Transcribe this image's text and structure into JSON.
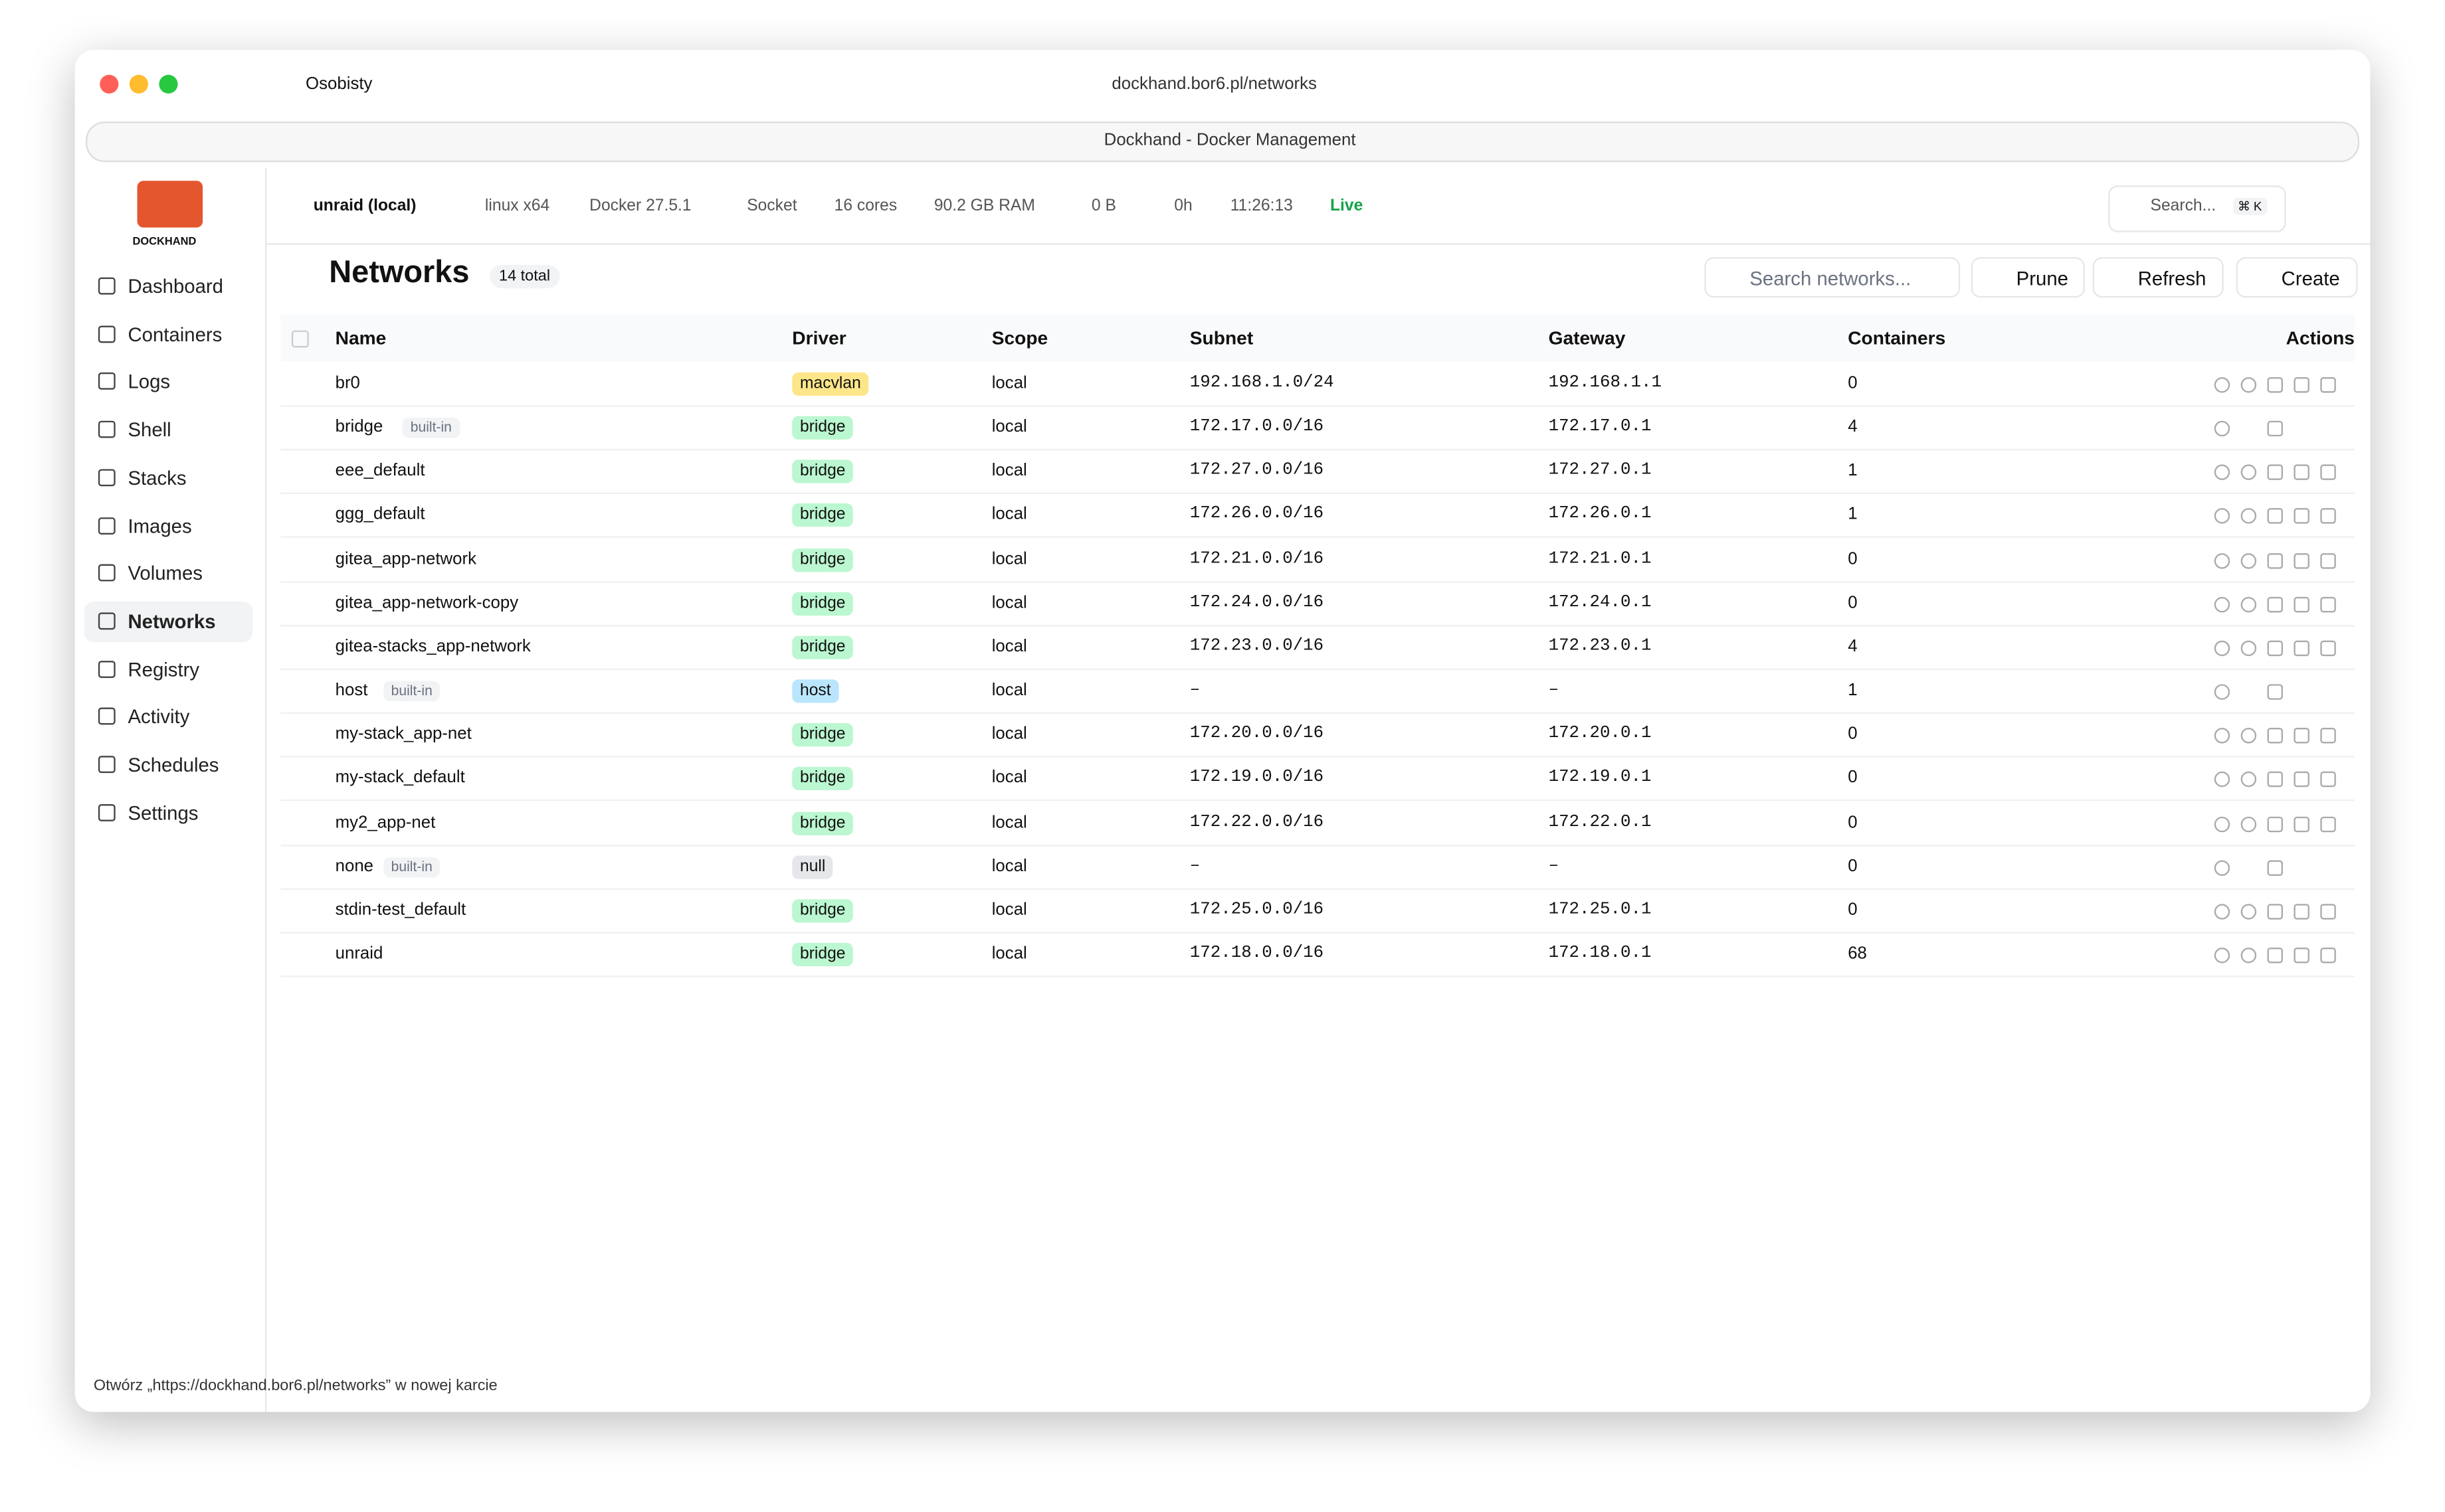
{
  "browser": {
    "profile": "Osobisty",
    "url": "dockhand.bor6.pl/networks",
    "tab_title": "Dockhand - Docker Management",
    "status_bar": "Otwórz „https://dockhand.bor6.pl/networks” w nowej karcie"
  },
  "sidebar": {
    "logo": "DOCKHAND",
    "nav": [
      {
        "label": "Dashboard"
      },
      {
        "label": "Containers"
      },
      {
        "label": "Logs"
      },
      {
        "label": "Shell"
      },
      {
        "label": "Stacks"
      },
      {
        "label": "Images"
      },
      {
        "label": "Volumes"
      },
      {
        "label": "Networks",
        "active": true
      },
      {
        "label": "Registry"
      },
      {
        "label": "Activity"
      },
      {
        "label": "Schedules"
      },
      {
        "label": "Settings"
      }
    ]
  },
  "topbar": {
    "environment": "unraid (local)",
    "os": "linux x64",
    "docker": "Docker 27.5.1",
    "connection": "Socket",
    "cores": "16 cores",
    "ram": "90.2 GB RAM",
    "disk": "0 B",
    "uptime": "0h",
    "time": "11:26:13",
    "status": "Live",
    "search": "Search...",
    "shortcut": "⌘ K"
  },
  "page": {
    "title": "Networks",
    "count": "14 total",
    "search_placeholder": "Search networks...",
    "buttons": [
      "Prune",
      "Refresh",
      "Create"
    ]
  },
  "table": {
    "columns": [
      "Name",
      "Driver",
      "Scope",
      "Subnet",
      "Gateway",
      "Containers",
      "Actions"
    ],
    "rows": [
      {
        "name": "br0",
        "driver": "macvlan",
        "driver_color": "#fde68a",
        "scope": "local",
        "subnet": "192.168.1.0/24",
        "gateway": "192.168.1.1",
        "containers": 0
      },
      {
        "name": "bridge",
        "tag": "built-in",
        "driver": "bridge",
        "driver_color": "#bbf7d0",
        "scope": "local",
        "subnet": "172.17.0.0/16",
        "gateway": "172.17.0.1",
        "containers": 4
      },
      {
        "name": "eee_default",
        "driver": "bridge",
        "driver_color": "#bbf7d0",
        "scope": "local",
        "subnet": "172.27.0.0/16",
        "gateway": "172.27.0.1",
        "containers": 1
      },
      {
        "name": "ggg_default",
        "driver": "bridge",
        "driver_color": "#bbf7d0",
        "scope": "local",
        "subnet": "172.26.0.0/16",
        "gateway": "172.26.0.1",
        "containers": 1
      },
      {
        "name": "gitea_app-network",
        "driver": "bridge",
        "driver_color": "#bbf7d0",
        "scope": "local",
        "subnet": "172.21.0.0/16",
        "gateway": "172.21.0.1",
        "containers": 0
      },
      {
        "name": "gitea_app-network-copy",
        "driver": "bridge",
        "driver_color": "#bbf7d0",
        "scope": "local",
        "subnet": "172.24.0.0/16",
        "gateway": "172.24.0.1",
        "containers": 0
      },
      {
        "name": "gitea-stacks_app-network",
        "driver": "bridge",
        "driver_color": "#bbf7d0",
        "scope": "local",
        "subnet": "172.23.0.0/16",
        "gateway": "172.23.0.1",
        "containers": 4
      },
      {
        "name": "host",
        "tag": "built-in",
        "driver": "host",
        "driver_color": "#bae6fd",
        "scope": "local",
        "subnet": "–",
        "gateway": "–",
        "containers": 1
      },
      {
        "name": "my-stack_app-net",
        "driver": "bridge",
        "driver_color": "#bbf7d0",
        "scope": "local",
        "subnet": "172.20.0.0/16",
        "gateway": "172.20.0.1",
        "containers": 0
      },
      {
        "name": "my-stack_default",
        "driver": "bridge",
        "driver_color": "#bbf7d0",
        "scope": "local",
        "subnet": "172.19.0.0/16",
        "gateway": "172.19.0.1",
        "containers": 0
      },
      {
        "name": "my2_app-net",
        "driver": "bridge",
        "driver_color": "#bbf7d0",
        "scope": "local",
        "subnet": "172.22.0.0/16",
        "gateway": "172.22.0.1",
        "containers": 0
      },
      {
        "name": "none",
        "tag": "built-in",
        "driver": "null",
        "driver_color": "#e5e7eb",
        "scope": "local",
        "subnet": "–",
        "gateway": "–",
        "containers": 0
      },
      {
        "name": "stdin-test_default",
        "driver": "bridge",
        "driver_color": "#bbf7d0",
        "scope": "local",
        "subnet": "172.25.0.0/16",
        "gateway": "172.25.0.1",
        "containers": 0
      },
      {
        "name": "unraid",
        "driver": "bridge",
        "driver_color": "#bbf7d0",
        "scope": "local",
        "subnet": "172.18.0.0/16",
        "gateway": "172.18.0.1",
        "containers": 68
      }
    ]
  }
}
